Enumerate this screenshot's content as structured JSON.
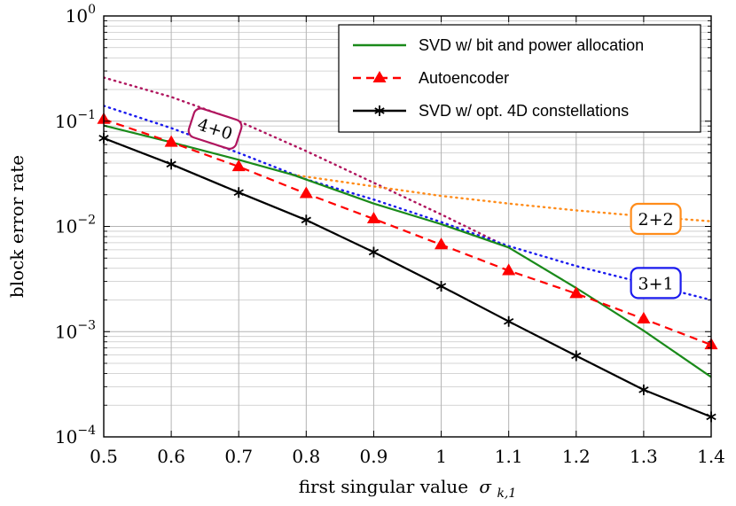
{
  "chart_data": {
    "type": "line",
    "xlabel": "first singular value",
    "xlabel_symbol": "σ",
    "xlabel_subscript": "k,1",
    "ylabel": "block error rate",
    "xlim": [
      0.5,
      1.4
    ],
    "ylim": [
      0.0001,
      1
    ],
    "yscale": "log",
    "grid": true,
    "legend_position": "top-right",
    "x_ticks": [
      "0.5",
      "0.6",
      "0.7",
      "0.8",
      "0.9",
      "1",
      "1.1",
      "1.2",
      "1.3",
      "1.4"
    ],
    "y_ticks": [
      {
        "base": "10",
        "exp": "0"
      },
      {
        "base": "10",
        "exp": "−1"
      },
      {
        "base": "10",
        "exp": "−2"
      },
      {
        "base": "10",
        "exp": "−3"
      },
      {
        "base": "10",
        "exp": "−4"
      }
    ],
    "series": [
      {
        "name": "SVD w/ bit and power allocation",
        "color": "#1a8a1a",
        "style": "solid",
        "marker": "none",
        "in_legend": true,
        "x": [
          0.5,
          0.6,
          0.7,
          0.78,
          0.9,
          1.0,
          1.1,
          1.2,
          1.3,
          1.4
        ],
        "y": [
          0.091,
          0.063,
          0.043,
          0.031,
          0.0165,
          0.0105,
          0.0063,
          0.0026,
          0.00102,
          0.00037
        ]
      },
      {
        "name": "Autoencoder",
        "color": "#ff0000",
        "style": "dashed",
        "marker": "triangle",
        "in_legend": true,
        "x": [
          0.5,
          0.6,
          0.7,
          0.8,
          0.9,
          1.0,
          1.1,
          1.2,
          1.3,
          1.4
        ],
        "y": [
          0.104,
          0.063,
          0.037,
          0.0205,
          0.0118,
          0.0067,
          0.0038,
          0.0023,
          0.00132,
          0.00075
        ]
      },
      {
        "name": "SVD w/ opt. 4D constellations",
        "color": "#000000",
        "style": "solid",
        "marker": "star",
        "in_legend": true,
        "x": [
          0.5,
          0.6,
          0.7,
          0.8,
          0.9,
          1.0,
          1.1,
          1.2,
          1.3,
          1.4
        ],
        "y": [
          0.069,
          0.039,
          0.021,
          0.0115,
          0.0057,
          0.0027,
          0.00125,
          0.00059,
          0.00028,
          0.000155
        ]
      },
      {
        "name": "4+0",
        "color": "#b0155e",
        "style": "dotted",
        "marker": "none",
        "in_legend": false,
        "x": [
          0.5,
          0.6,
          0.7,
          0.8,
          0.9,
          1.0,
          1.1
        ],
        "y": [
          0.26,
          0.17,
          0.1,
          0.052,
          0.026,
          0.013,
          0.0063
        ]
      },
      {
        "name": "3+1",
        "color": "#1a1aee",
        "style": "dotted",
        "marker": "none",
        "in_legend": false,
        "x": [
          0.5,
          0.6,
          0.7,
          0.8,
          0.9,
          1.0,
          1.1,
          1.2,
          1.3,
          1.4
        ],
        "y": [
          0.14,
          0.086,
          0.05,
          0.028,
          0.018,
          0.011,
          0.0065,
          0.0042,
          0.0029,
          0.002
        ]
      },
      {
        "name": "2+2",
        "color": "#ff8c1a",
        "style": "dotted",
        "marker": "none",
        "in_legend": false,
        "x": [
          0.78,
          0.9,
          1.0,
          1.1,
          1.2,
          1.3,
          1.4
        ],
        "y": [
          0.031,
          0.024,
          0.0195,
          0.0165,
          0.0142,
          0.0125,
          0.0112
        ]
      }
    ],
    "annotations": [
      {
        "text": "4+0",
        "x": 0.665,
        "y": 0.085,
        "color": "#b0155e",
        "rotate": 18
      },
      {
        "text": "2+2",
        "x": 1.318,
        "y": 0.0118,
        "color": "#ff8c1a",
        "rotate": 0
      },
      {
        "text": "3+1",
        "x": 1.318,
        "y": 0.0029,
        "color": "#1a1aee",
        "rotate": 0
      }
    ]
  }
}
